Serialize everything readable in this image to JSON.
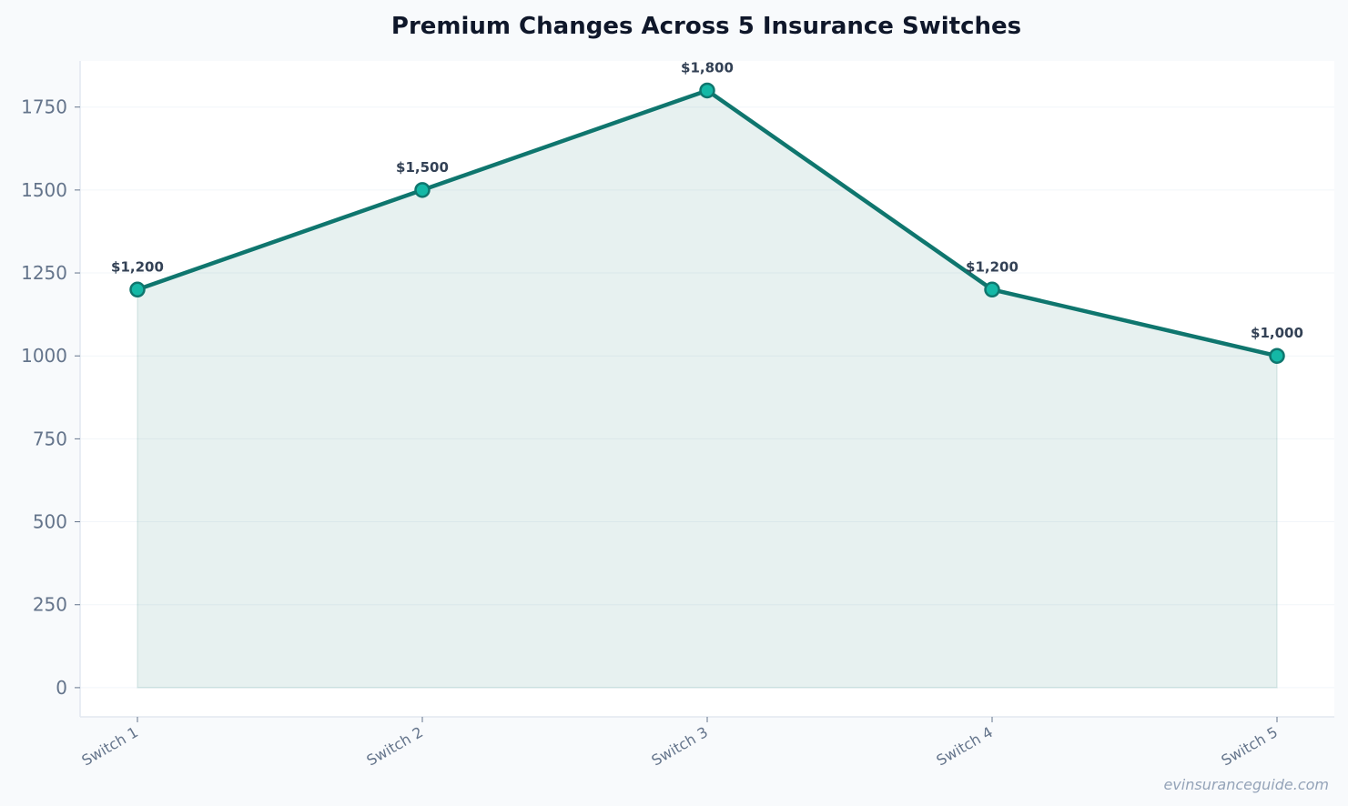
{
  "chart_data": {
    "type": "area",
    "title": "Premium Changes Across 5 Insurance Switches",
    "xlabel": "",
    "ylabel": "",
    "categories": [
      "Switch 1",
      "Switch 2",
      "Switch 3",
      "Switch 4",
      "Switch 5"
    ],
    "series": [
      {
        "values": [
          1200,
          1500,
          1800,
          1200,
          1000
        ],
        "data_labels": [
          "$1,200",
          "$1,500",
          "$1,800",
          "$1,200",
          "$1,000"
        ]
      }
    ],
    "ylim": [
      -88,
      1889
    ],
    "yticks": [
      0,
      250,
      500,
      750,
      1000,
      1250,
      1500,
      1750
    ],
    "grid": true,
    "legend": "none",
    "colors": {
      "line": "#0f766e",
      "marker_fill": "#14b8a6",
      "area_fill": "#0f766e"
    }
  },
  "watermark": "evinsuranceguide.com"
}
